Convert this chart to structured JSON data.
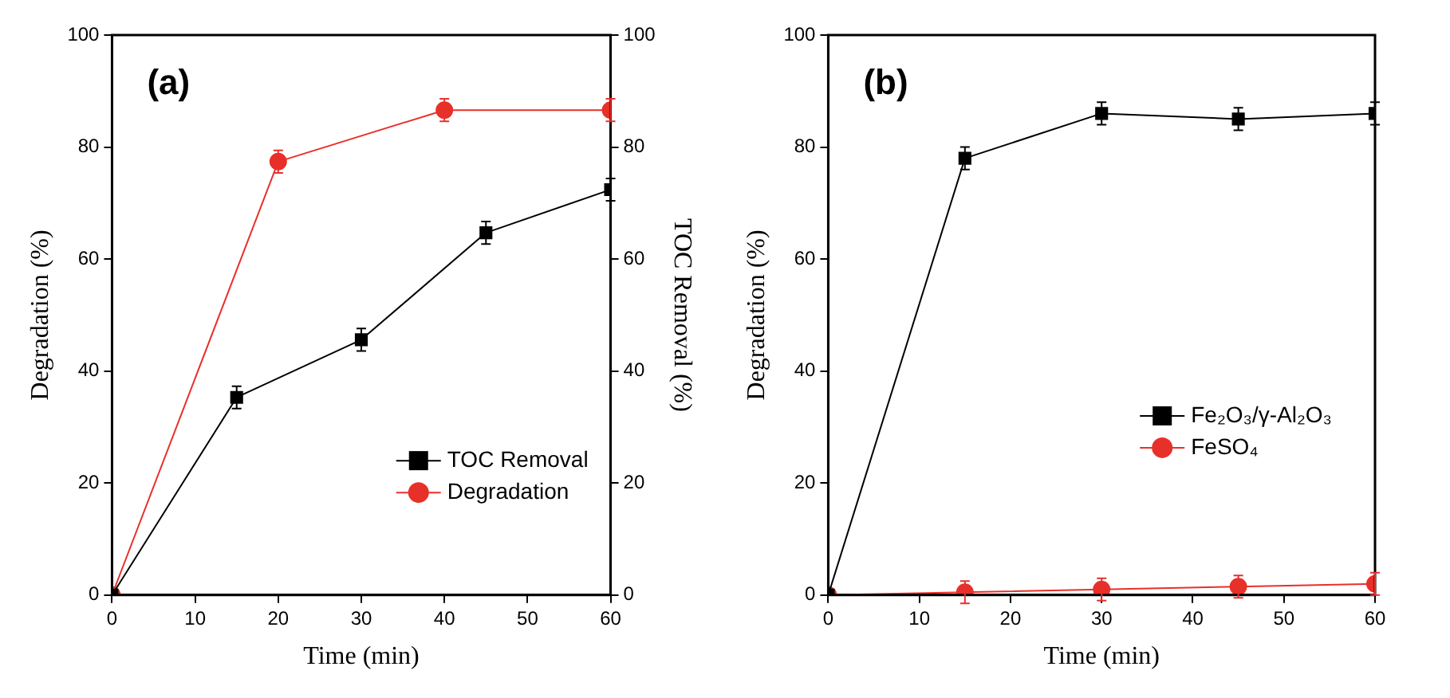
{
  "chart_data": [
    {
      "type": "line",
      "xlabel": "Time (min)",
      "ylabel": "Degradation (%)",
      "y2label": "TOC Removal (%)",
      "annotations": [
        "(a)"
      ],
      "xlim": [
        0,
        60
      ],
      "xticks": [
        0,
        10,
        20,
        30,
        40,
        50,
        60
      ],
      "ylim": [
        0,
        100
      ],
      "yticks": [
        0,
        20,
        40,
        60,
        80,
        100
      ],
      "y2lim": [
        0,
        100
      ],
      "y2ticks": [
        0,
        20,
        40,
        60,
        80,
        100
      ],
      "grid": false,
      "legend": "bottom right",
      "series": [
        {
          "name": "TOC Removal",
          "color": "#000000",
          "marker": "square",
          "axis": "y2",
          "x": [
            0,
            15,
            30,
            45,
            60
          ],
          "values": [
            0,
            35.3,
            45.6,
            64.7,
            72.4
          ],
          "errors": [
            null,
            2,
            2,
            2,
            2
          ]
        },
        {
          "name": "Degradation",
          "color": "#e8302a",
          "marker": "circle",
          "x": [
            0,
            20,
            40,
            60
          ],
          "values": [
            0,
            77.4,
            86.6,
            86.6
          ],
          "errors": [
            null,
            2,
            2,
            2
          ]
        }
      ]
    },
    {
      "type": "line",
      "xlabel": "Time (min)",
      "ylabel": "Degradation (%)",
      "annotations": [
        "(b)"
      ],
      "xlim": [
        0,
        60
      ],
      "xticks": [
        0,
        10,
        20,
        30,
        40,
        50,
        60
      ],
      "ylim": [
        0,
        100
      ],
      "yticks": [
        0,
        20,
        40,
        60,
        80,
        100
      ],
      "grid": false,
      "legend": "right",
      "series": [
        {
          "name": "Fe₂O₃/γ-Al₂O₃",
          "color": "#000000",
          "marker": "square",
          "x": [
            0,
            15,
            30,
            45,
            60
          ],
          "values": [
            0,
            78,
            86,
            85,
            86
          ],
          "errors": [
            null,
            2,
            2,
            2,
            2
          ]
        },
        {
          "name": "FeSO₄",
          "color": "#e8302a",
          "marker": "circle",
          "x": [
            0,
            15,
            30,
            45,
            60
          ],
          "values": [
            0,
            0.5,
            1,
            1.5,
            2
          ],
          "errors": [
            null,
            2,
            2,
            2,
            2
          ]
        }
      ]
    }
  ]
}
